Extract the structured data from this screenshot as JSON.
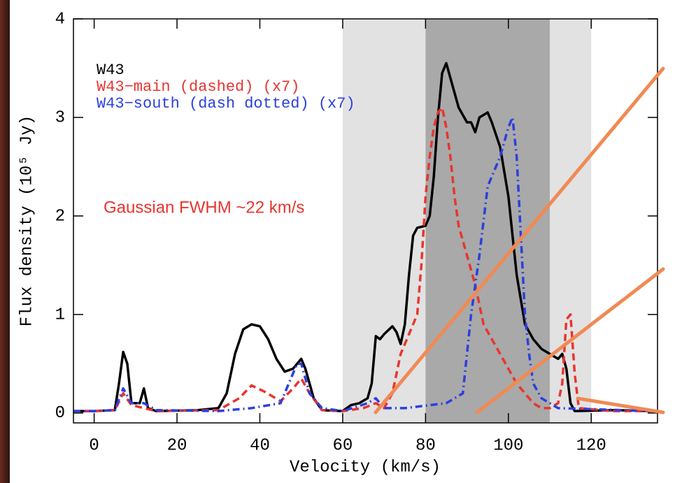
{
  "chart_data": {
    "type": "line",
    "xlabel": "Velocity (km/s)",
    "ylabel": "Flux density (10⁵ Jy)",
    "xlim": [
      -5,
      136
    ],
    "ylim": [
      -0.1,
      4
    ],
    "xticks": [
      0,
      20,
      40,
      60,
      80,
      100,
      120
    ],
    "yticks": [
      0,
      1,
      2,
      3,
      4
    ],
    "annotation": "Gaussian FWHM ~22 km/s",
    "bands": [
      {
        "from": 60,
        "to": 80,
        "color": "#e2e2e2"
      },
      {
        "from": 80,
        "to": 110,
        "color": "#a9a9a9"
      },
      {
        "from": 110,
        "to": 120,
        "color": "#e2e2e2"
      }
    ],
    "series": [
      {
        "name": "W43",
        "color": "#000000",
        "dash": "none",
        "x": [
          -5,
          0,
          5,
          6,
          7,
          8,
          9,
          11,
          12,
          13,
          15,
          25,
          30,
          32,
          34,
          36,
          38,
          40,
          42,
          44,
          46,
          48,
          50,
          51,
          53,
          55,
          60,
          62,
          64,
          66,
          67,
          68,
          69,
          70,
          72,
          73,
          74,
          75,
          76,
          77,
          78,
          80,
          81,
          82,
          83,
          84,
          85,
          86,
          88,
          90,
          91,
          92,
          93,
          95,
          96,
          98,
          100,
          102,
          104,
          106,
          108,
          110,
          112,
          113,
          114,
          115,
          116,
          125,
          135
        ],
        "values": [
          0.02,
          0.02,
          0.03,
          0.3,
          0.62,
          0.5,
          0.1,
          0.1,
          0.25,
          0.05,
          0.02,
          0.03,
          0.05,
          0.2,
          0.6,
          0.85,
          0.9,
          0.88,
          0.75,
          0.55,
          0.42,
          0.45,
          0.55,
          0.45,
          0.15,
          0.03,
          0.02,
          0.08,
          0.1,
          0.15,
          0.3,
          0.78,
          0.75,
          0.8,
          0.88,
          0.82,
          0.7,
          0.9,
          1.4,
          1.8,
          1.88,
          1.9,
          2.0,
          2.4,
          3.0,
          3.45,
          3.55,
          3.4,
          3.1,
          2.95,
          2.95,
          2.85,
          3.0,
          3.05,
          2.95,
          2.7,
          2.2,
          1.4,
          0.9,
          0.75,
          0.65,
          0.6,
          0.55,
          0.6,
          0.45,
          0.1,
          0.02,
          0.03,
          0.02
        ]
      },
      {
        "name": "W43−main (dashed) (x7)",
        "color": "#e8352f",
        "dash": "10 6",
        "x": [
          -5,
          0,
          5,
          7,
          9,
          12,
          15,
          30,
          35,
          38,
          41,
          45,
          48,
          50,
          52,
          55,
          60,
          65,
          68,
          70,
          72,
          74,
          76,
          78,
          79,
          80,
          81,
          82,
          83,
          84,
          85,
          86,
          87,
          88,
          90,
          92,
          94,
          96,
          98,
          100,
          102,
          104,
          106,
          108,
          110,
          112,
          113,
          114,
          115,
          116,
          117,
          125,
          135
        ],
        "values": [
          0.02,
          0.02,
          0.03,
          0.2,
          0.08,
          0.05,
          0.02,
          0.03,
          0.15,
          0.28,
          0.22,
          0.12,
          0.25,
          0.35,
          0.2,
          0.03,
          0.02,
          0.05,
          0.1,
          0.05,
          0.2,
          0.6,
          0.8,
          1.0,
          1.5,
          2.2,
          2.6,
          2.9,
          3.05,
          3.1,
          2.9,
          2.6,
          2.2,
          1.9,
          1.6,
          1.3,
          0.9,
          0.75,
          0.6,
          0.45,
          0.3,
          0.2,
          0.1,
          0.05,
          0.05,
          0.1,
          0.3,
          0.95,
          1.0,
          0.4,
          0.05,
          0.02,
          0.02
        ]
      },
      {
        "name": "W43−south (dash dotted) (x7)",
        "color": "#2b3fe0",
        "dash": "10 5 2 5",
        "x": [
          -5,
          0,
          5,
          7,
          9,
          12,
          15,
          30,
          38,
          45,
          47,
          49,
          50,
          52,
          55,
          60,
          66,
          68,
          70,
          75,
          85,
          89,
          91,
          93,
          95,
          96,
          98,
          100,
          101,
          102,
          103,
          104,
          105,
          106,
          108,
          110,
          112,
          135
        ],
        "values": [
          0.02,
          0.02,
          0.03,
          0.25,
          0.1,
          0.1,
          0.03,
          0.02,
          0.05,
          0.1,
          0.3,
          0.5,
          0.5,
          0.2,
          0.05,
          0.02,
          0.1,
          0.15,
          0.05,
          0.05,
          0.1,
          0.2,
          1.0,
          1.6,
          2.3,
          2.4,
          2.6,
          2.9,
          3.0,
          2.6,
          1.8,
          1.0,
          0.6,
          0.3,
          0.15,
          0.1,
          0.05,
          0.02
        ]
      }
    ]
  }
}
